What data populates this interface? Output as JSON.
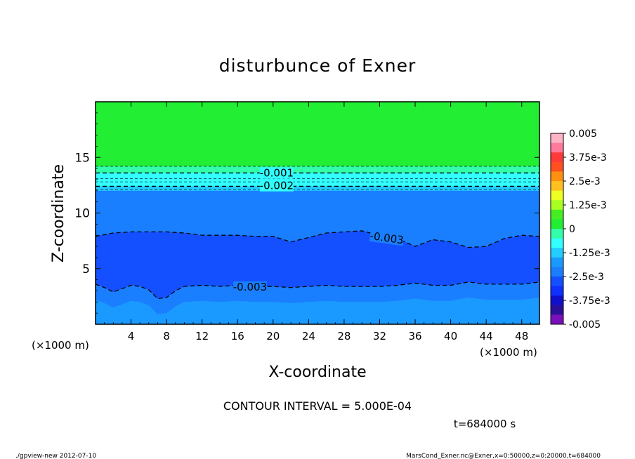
{
  "chart_data": {
    "type": "heatmap",
    "title": "disturbunce of Exner",
    "xlabel": "X-coordinate",
    "ylabel": "Z-coordinate",
    "x_unit": "(×1000 m)",
    "x_unit_right": "(×1000 m)",
    "y_unit": "(×1000 m)",
    "xlim": [
      0,
      50
    ],
    "ylim": [
      0,
      20
    ],
    "x_ticks": [
      4,
      8,
      12,
      16,
      20,
      24,
      28,
      32,
      36,
      40,
      44,
      48
    ],
    "y_ticks": [
      5,
      10,
      15
    ],
    "bands": [
      {
        "z_bottom": 14.2,
        "z_top": 20,
        "value_range": [
          0,
          0.0005
        ],
        "color": "#22ee33"
      },
      {
        "z_bottom": 13.6,
        "z_top": 14.2,
        "value_range": [
          -0.0005,
          0
        ],
        "color": "#33ffaa"
      },
      {
        "z_bottom": 12.4,
        "z_top": 13.6,
        "value_range": [
          -0.0015,
          -0.0005
        ],
        "color": "#33ffff"
      },
      {
        "z_bottom": 12.0,
        "z_top": 12.4,
        "value_range": [
          -0.0025,
          -0.0015
        ],
        "color": "#22ccff"
      },
      {
        "z_bottom": 0,
        "z_top": 12.0,
        "value_range": [
          -0.0035,
          -0.0025
        ],
        "color": "#1a7fff"
      },
      {
        "z_bottom": 3.5,
        "z_top": 8.3,
        "value_range": [
          -0.004,
          -0.0035
        ],
        "color": "#1450ff"
      }
    ],
    "lower_band_color": "#1a9aff",
    "contours": [
      {
        "level": -0.001,
        "label": "-0.001",
        "z": 13.6
      },
      {
        "level": -0.002,
        "label": "-0.002",
        "z": 12.4
      },
      {
        "level": -0.003,
        "label": "-0.003",
        "upper_x": [
          0,
          2,
          4,
          6,
          8,
          10,
          12,
          14,
          16,
          18,
          20,
          22,
          24,
          26,
          28,
          30,
          32,
          34,
          36,
          38,
          40,
          42,
          44,
          46,
          48,
          50
        ],
        "upper_z": [
          7.9,
          8.2,
          8.3,
          8.3,
          8.3,
          8.2,
          8.0,
          8.0,
          8.0,
          7.9,
          7.9,
          7.4,
          7.8,
          8.2,
          8.3,
          8.4,
          8.0,
          7.7,
          7.0,
          7.6,
          7.4,
          6.9,
          7.0,
          7.7,
          8.0,
          7.9
        ]
      },
      {
        "level": -0.003,
        "label": "-0.003",
        "lower_x": [
          0,
          1,
          2,
          3,
          4,
          5,
          6,
          7,
          8,
          9,
          10,
          12,
          14,
          16,
          18,
          20,
          22,
          24,
          26,
          28,
          30,
          32,
          34,
          36,
          38,
          40,
          42,
          44,
          46,
          48,
          50
        ],
        "lower_z": [
          3.6,
          3.3,
          2.9,
          3.2,
          3.5,
          3.4,
          3.1,
          2.3,
          2.4,
          3.0,
          3.4,
          3.5,
          3.4,
          3.5,
          3.4,
          3.4,
          3.3,
          3.4,
          3.5,
          3.4,
          3.4,
          3.4,
          3.5,
          3.7,
          3.5,
          3.5,
          3.8,
          3.6,
          3.6,
          3.6,
          3.8
        ]
      }
    ],
    "colorbar": {
      "labels": [
        "0.005",
        "3.75e-3",
        "2.5e-3",
        "1.25e-3",
        "0",
        "-1.25e-3",
        "-2.5e-3",
        "-3.75e-3",
        "-0.005"
      ],
      "colors": [
        "#ffb3c6",
        "#ff7a9a",
        "#ff3a3a",
        "#ff5020",
        "#ff9010",
        "#ffc020",
        "#eeff22",
        "#aaff22",
        "#44ee22",
        "#22ee33",
        "#33ffaa",
        "#33ffff",
        "#22ccff",
        "#1a9aff",
        "#1a7fff",
        "#1450ff",
        "#1030ff",
        "#1010cc",
        "#2a1099",
        "#7a10bb"
      ]
    },
    "contour_interval_text": "CONTOUR INTERVAL = 5.000E-04",
    "time_text": "t=684000 s"
  },
  "footer": {
    "left": "./gpview-new   2012-07-10",
    "right": "MarsCond_Exner.nc@Exner,x=0:50000,z=0:20000,t=684000"
  }
}
